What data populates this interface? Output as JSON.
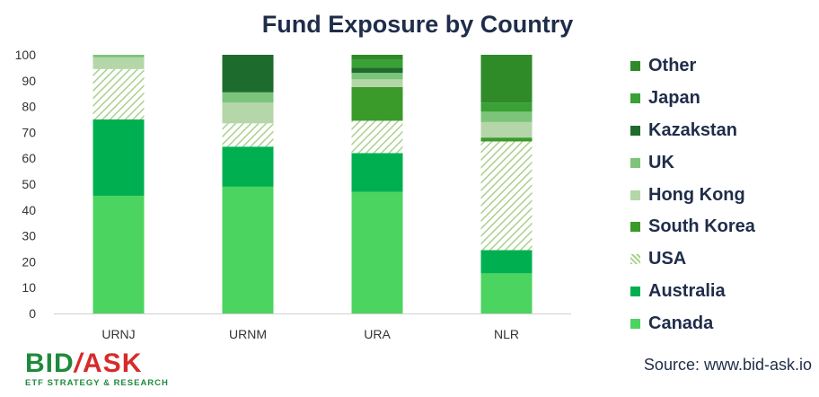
{
  "chart_data": {
    "type": "bar",
    "stacked": true,
    "title": "Fund Exposure by Country",
    "categories": [
      "URNJ",
      "URNM",
      "URA",
      "NLR"
    ],
    "ylim": [
      0,
      100
    ],
    "yticks": [
      "0",
      "10",
      "20",
      "30",
      "40",
      "50",
      "60",
      "70",
      "80",
      "90",
      "100"
    ],
    "grid": false,
    "legend_position": "right",
    "series": [
      {
        "name": "Canada",
        "color": "#4cd460",
        "pattern": "solid",
        "values": [
          45.5,
          49,
          47,
          15.5
        ]
      },
      {
        "name": "Australia",
        "color": "#00b050",
        "pattern": "solid",
        "values": [
          29.5,
          15.5,
          15,
          9
        ]
      },
      {
        "name": "USA",
        "color": "#a9d18e",
        "pattern": "hatched",
        "values": [
          19.5,
          9,
          12.5,
          42
        ]
      },
      {
        "name": "South Korea",
        "color": "#3a9a2a",
        "pattern": "solid",
        "values": [
          0,
          0,
          13,
          1.5
        ]
      },
      {
        "name": "Hong Kong",
        "color": "#b5d6a8",
        "pattern": "solid",
        "values": [
          4.5,
          8,
          3,
          6
        ]
      },
      {
        "name": "UK",
        "color": "#7cc47a",
        "pattern": "solid",
        "values": [
          1,
          4,
          2.5,
          4
        ]
      },
      {
        "name": "Kazakstan",
        "color": "#1e6b2e",
        "pattern": "solid",
        "values": [
          0,
          14.5,
          2,
          0
        ]
      },
      {
        "name": "Japan",
        "color": "#39a135",
        "pattern": "solid",
        "values": [
          0,
          0,
          3,
          3.5
        ]
      },
      {
        "name": "Other",
        "color": "#2f8a28",
        "pattern": "solid",
        "values": [
          0,
          0,
          2,
          18.5
        ]
      }
    ]
  },
  "legend_order": [
    "Other",
    "Japan",
    "Kazakstan",
    "UK",
    "Hong Kong",
    "South Korea",
    "USA",
    "Australia",
    "Canada"
  ],
  "branding": {
    "logo_bid": "BID",
    "logo_slash": "/",
    "logo_ask": "ASK",
    "logo_subtitle": "ETF STRATEGY & RESEARCH",
    "source": "Source: www.bid-ask.io"
  }
}
